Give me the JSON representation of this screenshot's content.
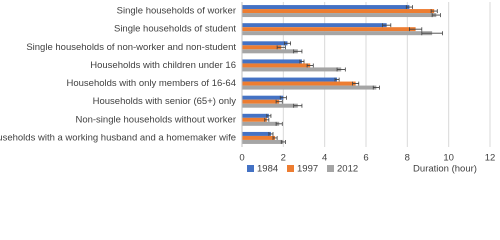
{
  "chart_data": {
    "type": "hbar",
    "categories": [
      "Single households of worker",
      "Single households of student",
      "Single households of non-worker and non-student",
      "Households with children under 16",
      "Households with only members of 16-64",
      "Households with senior (65+) only",
      "Non-single households without worker",
      "Households with a working husband and a homemaker wife"
    ],
    "series": [
      {
        "name": "1984",
        "color": "#4472c4",
        "values": [
          8.1,
          7.0,
          2.2,
          2.9,
          4.6,
          2.0,
          1.3,
          1.4
        ],
        "errors": [
          0.15,
          0.2,
          0.15,
          0.1,
          0.1,
          0.15,
          0.1,
          0.1
        ]
      },
      {
        "name": "1997",
        "color": "#ed7d31",
        "values": [
          9.3,
          8.4,
          1.9,
          3.3,
          5.5,
          1.8,
          1.2,
          1.6
        ],
        "errors": [
          0.15,
          0.3,
          0.2,
          0.15,
          0.15,
          0.15,
          0.1,
          0.1
        ]
      },
      {
        "name": "2012",
        "color": "#a5a5a5",
        "values": [
          9.4,
          9.2,
          2.7,
          4.8,
          6.5,
          2.7,
          1.8,
          2.0
        ],
        "errors": [
          0.2,
          0.5,
          0.2,
          0.2,
          0.15,
          0.2,
          0.15,
          0.1
        ]
      }
    ],
    "x_label": "Duration (hour)",
    "xlim": [
      0,
      12
    ],
    "xticks": [
      0,
      2,
      4,
      6,
      8,
      10,
      12
    ],
    "grid": true,
    "legend": "bottom-left"
  }
}
